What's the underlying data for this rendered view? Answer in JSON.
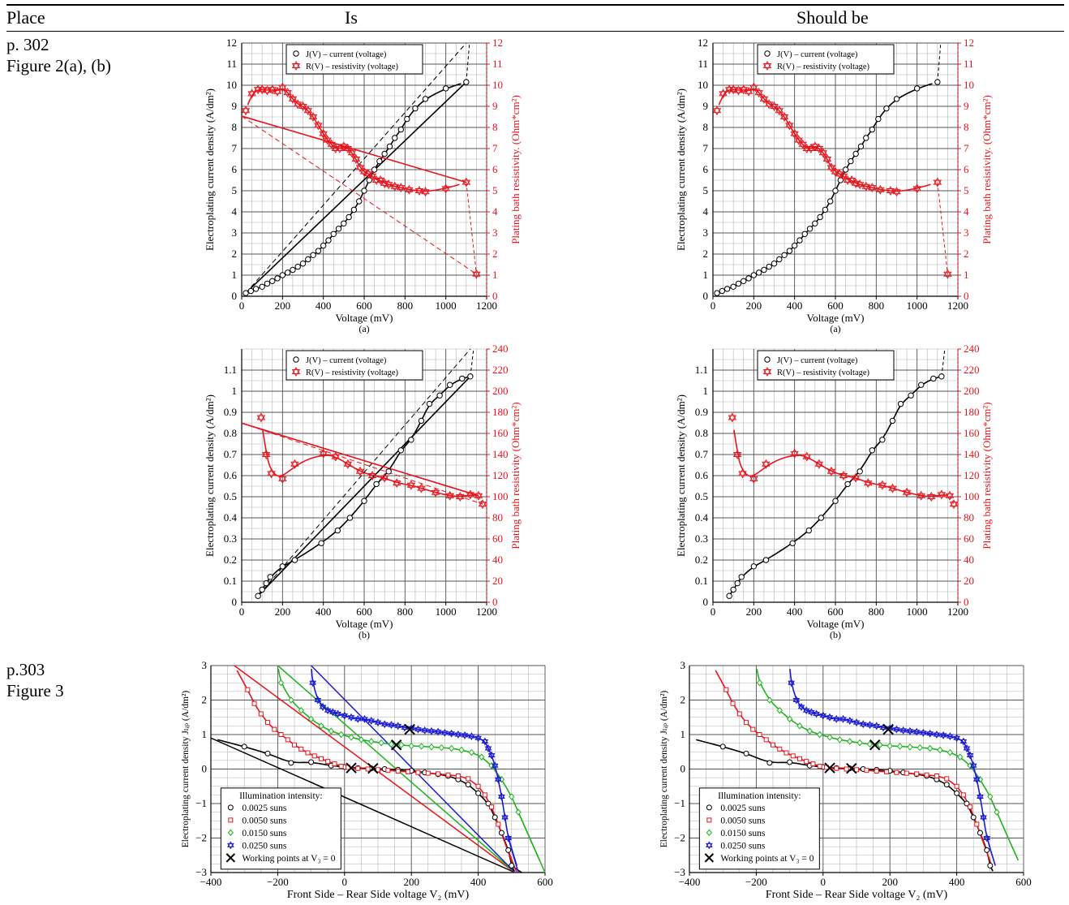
{
  "header": {
    "place": "Place",
    "is": "Is",
    "should_be": "Should be"
  },
  "rows": [
    {
      "place_line1": "p. 302",
      "place_line2": "Figure 2(a), (b)"
    },
    {
      "place_line1": "p.303",
      "place_line2": "Figure 3"
    }
  ],
  "colors": {
    "current": "#000000",
    "resistivity": "#e8141c",
    "s0025": "#000000",
    "s0050": "#e8141c",
    "s0150": "#1db51d",
    "s0250": "#1a1ad6"
  },
  "chart_data": [
    {
      "id": "fig2a",
      "type": "line",
      "sublabel": "(a)",
      "xlabel": "Voltage (mV)",
      "ylabel": "Electroplating current density (A/dm²)",
      "y2label": "Plating bath resistivity. (Ohm*cm²)",
      "xlim": [
        0,
        1200
      ],
      "ylim": [
        0,
        12
      ],
      "y2lim": [
        0,
        12
      ],
      "xticks": [
        0,
        200,
        400,
        600,
        800,
        1000,
        1200
      ],
      "yticks": [
        0,
        1,
        2,
        3,
        4,
        5,
        6,
        7,
        8,
        9,
        10,
        11,
        12
      ],
      "y2ticks": [
        0,
        1,
        2,
        3,
        4,
        5,
        6,
        7,
        8,
        9,
        10,
        11,
        12
      ],
      "legend": [
        "J(V) – current (voltage)",
        "R(V) – resistivity (voltage)"
      ],
      "series": [
        {
          "name": "J(V) – current (voltage)",
          "axis": "left",
          "marker": "circle",
          "x": [
            20,
            45,
            70,
            100,
            125,
            150,
            175,
            200,
            225,
            250,
            275,
            300,
            325,
            350,
            375,
            400,
            425,
            450,
            475,
            500,
            525,
            550,
            575,
            600,
            625,
            650,
            675,
            700,
            725,
            750,
            780,
            810,
            850,
            900,
            1000,
            1100
          ],
          "y": [
            0.15,
            0.25,
            0.35,
            0.45,
            0.6,
            0.72,
            0.85,
            1.0,
            1.12,
            1.25,
            1.4,
            1.55,
            1.75,
            1.95,
            2.15,
            2.4,
            2.65,
            2.95,
            3.2,
            3.45,
            3.75,
            4.1,
            4.5,
            5.0,
            5.5,
            6.0,
            6.4,
            6.75,
            7.1,
            7.5,
            7.9,
            8.4,
            8.9,
            9.35,
            9.85,
            10.15
          ]
        },
        {
          "name": "R(V) – resistivity (voltage)",
          "axis": "right",
          "marker": "star",
          "x": [
            20,
            50,
            80,
            100,
            125,
            150,
            175,
            200,
            225,
            250,
            275,
            300,
            325,
            350,
            375,
            400,
            420,
            440,
            460,
            480,
            500,
            520,
            540,
            560,
            580,
            600,
            620,
            640,
            660,
            680,
            700,
            720,
            750,
            780,
            820,
            870,
            900,
            1000,
            1100,
            1150
          ],
          "y": [
            8.8,
            9.6,
            9.8,
            9.8,
            9.75,
            9.8,
            9.7,
            9.9,
            9.65,
            9.35,
            9.1,
            9.0,
            8.8,
            8.5,
            8.1,
            7.7,
            7.4,
            7.2,
            7.0,
            7.0,
            7.1,
            7.0,
            6.8,
            6.5,
            6.1,
            5.9,
            5.8,
            5.7,
            5.5,
            5.5,
            5.35,
            5.3,
            5.2,
            5.15,
            5.05,
            5.0,
            4.95,
            5.1,
            5.4,
            1.05
          ]
        }
      ]
    },
    {
      "id": "fig2b",
      "type": "line",
      "sublabel": "(b)",
      "xlabel": "Voltage (mV)",
      "ylabel": "Electroplating current density (A/dm²)",
      "y2label": "Plating bath resistivity (Ohm*cm²)",
      "xlim": [
        0,
        1200
      ],
      "ylim": [
        0,
        1.2
      ],
      "y2lim": [
        0,
        240
      ],
      "xticks": [
        0,
        200,
        400,
        600,
        800,
        1000,
        1200
      ],
      "yticks": [
        0,
        0.1,
        0.2,
        0.3,
        0.4,
        0.5,
        0.6,
        0.7,
        0.8,
        0.9,
        1,
        1.1
      ],
      "y2ticks": [
        0,
        20,
        40,
        60,
        80,
        100,
        120,
        140,
        160,
        180,
        200,
        220,
        240
      ],
      "legend": [
        "J(V) – current (voltage)",
        "R(V) – resistivity (voltage)"
      ],
      "series": [
        {
          "name": "J(V) – current (voltage)",
          "axis": "left",
          "marker": "circle",
          "x": [
            80,
            100,
            120,
            140,
            200,
            260,
            390,
            470,
            530,
            600,
            660,
            720,
            780,
            830,
            880,
            920,
            970,
            1020,
            1080,
            1120
          ],
          "y": [
            0.03,
            0.06,
            0.09,
            0.12,
            0.17,
            0.2,
            0.28,
            0.34,
            0.4,
            0.48,
            0.56,
            0.62,
            0.72,
            0.77,
            0.86,
            0.94,
            0.98,
            1.03,
            1.06,
            1.07
          ]
        },
        {
          "name": "R(V) – resistivity (voltage)",
          "axis": "right",
          "marker": "star",
          "x": [
            95,
            120,
            145,
            200,
            260,
            400,
            460,
            520,
            580,
            640,
            700,
            760,
            830,
            880,
            950,
            1020,
            1070,
            1120,
            1160,
            1180
          ],
          "y": [
            175,
            140,
            122,
            117,
            131,
            141,
            138,
            131,
            124,
            120,
            118,
            113,
            111,
            108,
            104,
            101,
            100,
            102,
            101,
            93
          ]
        }
      ]
    },
    {
      "id": "fig3",
      "type": "scatter",
      "xlabel": "Front Side – Rear Side voltage V₂ (mV)",
      "ylabel": "Electroplating current density Jₗᵢₚ (A/dm²)",
      "xlim": [
        -400,
        600
      ],
      "ylim": [
        -3,
        3
      ],
      "xticks": [
        -400,
        -200,
        0,
        200,
        400,
        600
      ],
      "yticks": [
        -3,
        -2,
        -1,
        0,
        1,
        2,
        3
      ],
      "legend_title": "Illumination intensity:",
      "legend": [
        "0.0025 suns",
        "0.0050 suns",
        "0.0150 suns",
        "0.0250 suns",
        "Working points at V₃ = 0"
      ],
      "series": [
        {
          "name": "0.0025 suns",
          "marker": "circle",
          "x": [
            -300,
            -230,
            -160,
            -100,
            -40,
            0,
            40,
            80,
            120,
            160,
            200,
            240,
            280,
            310,
            340,
            370,
            400,
            430,
            450,
            470,
            490,
            500
          ],
          "y": [
            0.65,
            0.45,
            0.18,
            0.2,
            0.1,
            0.06,
            0.03,
            0.02,
            0.0,
            -0.02,
            -0.05,
            -0.1,
            -0.15,
            -0.2,
            -0.3,
            -0.45,
            -0.7,
            -1.0,
            -1.4,
            -1.85,
            -2.35,
            -2.8
          ]
        },
        {
          "name": "0.0050 suns",
          "marker": "square",
          "x": [
            -290,
            -270,
            -250,
            -230,
            -210,
            -190,
            -170,
            -150,
            -130,
            -110,
            -90,
            -70,
            -50,
            -30,
            -10,
            10,
            40,
            70,
            100,
            130,
            160,
            190,
            220,
            250,
            280,
            310,
            340,
            370,
            400,
            420,
            440,
            460
          ],
          "y": [
            2.3,
            1.9,
            1.6,
            1.35,
            1.15,
            1.0,
            0.85,
            0.7,
            0.58,
            0.47,
            0.38,
            0.3,
            0.22,
            0.15,
            0.08,
            0.05,
            0.02,
            0.0,
            -0.02,
            -0.04,
            -0.06,
            -0.08,
            -0.1,
            -0.12,
            -0.14,
            -0.17,
            -0.2,
            -0.28,
            -0.5,
            -0.75,
            -1.1,
            -1.6
          ]
        },
        {
          "name": "0.0150 suns",
          "marker": "diamond",
          "x": [
            -190,
            -160,
            -130,
            -100,
            -70,
            -40,
            -10,
            20,
            50,
            80,
            110,
            140,
            170,
            200,
            230,
            260,
            290,
            320,
            350,
            380,
            410,
            440,
            470,
            500,
            520
          ],
          "y": [
            2.5,
            2.0,
            1.7,
            1.45,
            1.25,
            1.1,
            1.0,
            0.92,
            0.85,
            0.8,
            0.76,
            0.72,
            0.7,
            0.67,
            0.66,
            0.64,
            0.62,
            0.6,
            0.55,
            0.48,
            0.35,
            0.1,
            -0.3,
            -0.8,
            -1.25
          ]
        },
        {
          "name": "0.0250 suns",
          "marker": "star",
          "x": [
            -95,
            -80,
            -65,
            -50,
            -35,
            -20,
            0,
            20,
            40,
            60,
            80,
            100,
            120,
            140,
            160,
            180,
            200,
            220,
            240,
            260,
            280,
            300,
            320,
            340,
            360,
            380,
            400,
            420,
            430,
            440,
            450,
            460,
            470,
            480,
            490
          ],
          "y": [
            2.5,
            2.0,
            1.8,
            1.7,
            1.65,
            1.6,
            1.55,
            1.5,
            1.45,
            1.45,
            1.4,
            1.35,
            1.3,
            1.28,
            1.25,
            1.2,
            1.18,
            1.15,
            1.12,
            1.1,
            1.08,
            1.05,
            1.03,
            1.0,
            0.98,
            0.95,
            0.9,
            0.8,
            0.6,
            0.4,
            0.1,
            -0.3,
            -0.8,
            -1.4,
            -2.0
          ]
        },
        {
          "name": "Working points at V₃ = 0",
          "marker": "x",
          "x": [
            20,
            85,
            155,
            195
          ],
          "y": [
            0.03,
            0.02,
            0.7,
            1.15
          ]
        }
      ]
    }
  ]
}
